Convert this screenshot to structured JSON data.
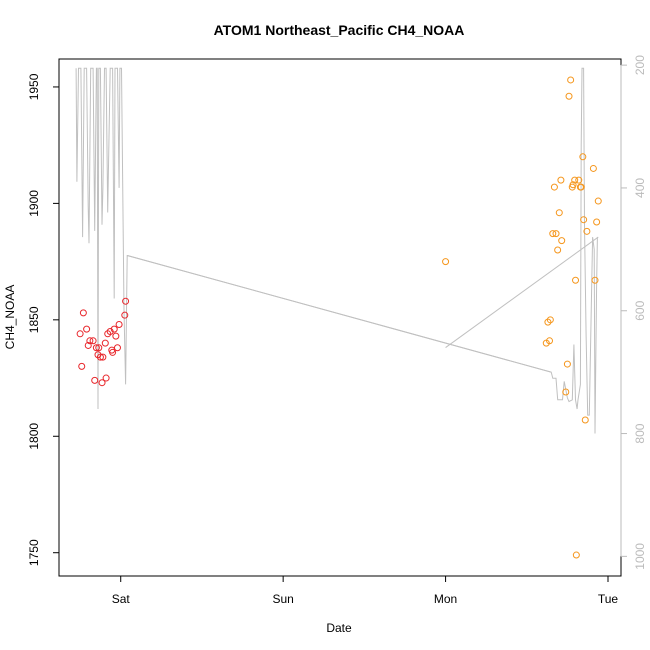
{
  "chart_data": {
    "type": "scatter",
    "title": "ATOM1 Northeast_Pacific CH4_NOAA",
    "xlabel": "Date",
    "ylabel": "CH4_NOAA",
    "x_unit": "days since Fri 00:00",
    "xlim": [
      0.62,
      4.08
    ],
    "ylim": [
      1740,
      1962
    ],
    "y2lim": [
      1032,
      190
    ],
    "x_ticks": [
      {
        "value": 1,
        "label": "Sat"
      },
      {
        "value": 2,
        "label": "Sun"
      },
      {
        "value": 3,
        "label": "Mon"
      },
      {
        "value": 4,
        "label": "Tue"
      }
    ],
    "y_ticks": [
      {
        "value": 1750,
        "label": "1750"
      },
      {
        "value": 1800,
        "label": "1800"
      },
      {
        "value": 1850,
        "label": "1850"
      },
      {
        "value": 1900,
        "label": "1900"
      },
      {
        "value": 1950,
        "label": "1950"
      }
    ],
    "y2_ticks": [
      {
        "value": 200,
        "label": "200"
      },
      {
        "value": 400,
        "label": "400"
      },
      {
        "value": 600,
        "label": "600"
      },
      {
        "value": 800,
        "label": "800"
      },
      {
        "value": 1000,
        "label": "1000"
      }
    ],
    "colors": {
      "series_1": "#e8262b",
      "series_2": "#f5961c",
      "pressure": "#c0c0c0"
    },
    "series": [
      {
        "name": "series_1",
        "points": [
          [
            0.75,
            1844
          ],
          [
            0.76,
            1830
          ],
          [
            0.77,
            1853
          ],
          [
            0.79,
            1846
          ],
          [
            0.8,
            1839
          ],
          [
            0.81,
            1841
          ],
          [
            0.83,
            1841
          ],
          [
            0.84,
            1824
          ],
          [
            0.85,
            1838
          ],
          [
            0.86,
            1835
          ],
          [
            0.865,
            1838
          ],
          [
            0.875,
            1834
          ],
          [
            0.885,
            1823
          ],
          [
            0.89,
            1834
          ],
          [
            0.905,
            1840
          ],
          [
            0.91,
            1825
          ],
          [
            0.92,
            1844
          ],
          [
            0.935,
            1845
          ],
          [
            0.945,
            1837
          ],
          [
            0.95,
            1836
          ],
          [
            0.96,
            1846
          ],
          [
            0.97,
            1843
          ],
          [
            0.98,
            1838
          ],
          [
            0.99,
            1848
          ],
          [
            1.025,
            1852
          ],
          [
            1.03,
            1858
          ]
        ]
      },
      {
        "name": "series_2",
        "points": [
          [
            3.0,
            1875
          ],
          [
            3.62,
            1840
          ],
          [
            3.63,
            1849
          ],
          [
            3.64,
            1841
          ],
          [
            3.645,
            1850
          ],
          [
            3.66,
            1887
          ],
          [
            3.67,
            1907
          ],
          [
            3.68,
            1887
          ],
          [
            3.69,
            1880
          ],
          [
            3.7,
            1896
          ],
          [
            3.71,
            1910
          ],
          [
            3.715,
            1884
          ],
          [
            3.74,
            1819
          ],
          [
            3.75,
            1831
          ],
          [
            3.76,
            1946
          ],
          [
            3.77,
            1953
          ],
          [
            3.78,
            1907
          ],
          [
            3.785,
            1908
          ],
          [
            3.795,
            1910
          ],
          [
            3.8,
            1867
          ],
          [
            3.805,
            1749
          ],
          [
            3.82,
            1910
          ],
          [
            3.83,
            1907
          ],
          [
            3.835,
            1907
          ],
          [
            3.845,
            1920
          ],
          [
            3.85,
            1893
          ],
          [
            3.86,
            1807
          ],
          [
            3.87,
            1888
          ],
          [
            3.91,
            1915
          ],
          [
            3.92,
            1867
          ],
          [
            3.93,
            1892
          ],
          [
            3.94,
            1901
          ]
        ]
      }
    ],
    "pressure_line": {
      "name": "pressure",
      "axis": "right",
      "points": [
        [
          0.725,
          205
        ],
        [
          0.73,
          390
        ],
        [
          0.74,
          205
        ],
        [
          0.755,
          205
        ],
        [
          0.765,
          480
        ],
        [
          0.775,
          205
        ],
        [
          0.79,
          205
        ],
        [
          0.8,
          430
        ],
        [
          0.805,
          490
        ],
        [
          0.815,
          205
        ],
        [
          0.83,
          205
        ],
        [
          0.84,
          470
        ],
        [
          0.85,
          205
        ],
        [
          0.855,
          205
        ],
        [
          0.86,
          760
        ],
        [
          0.865,
          205
        ],
        [
          0.875,
          205
        ],
        [
          0.885,
          460
        ],
        [
          0.89,
          400
        ],
        [
          0.9,
          205
        ],
        [
          0.91,
          205
        ],
        [
          0.92,
          440
        ],
        [
          0.935,
          205
        ],
        [
          0.95,
          205
        ],
        [
          0.96,
          580
        ],
        [
          0.965,
          205
        ],
        [
          0.98,
          205
        ],
        [
          0.99,
          400
        ],
        [
          0.995,
          205
        ],
        [
          1.005,
          205
        ],
        [
          1.02,
          600
        ],
        [
          1.03,
          720
        ],
        [
          1.04,
          510
        ],
        [
          3.65,
          700
        ],
        [
          3.66,
          710
        ],
        [
          3.68,
          710
        ],
        [
          3.69,
          745
        ],
        [
          3.72,
          745
        ],
        [
          3.73,
          715
        ],
        [
          3.75,
          742
        ],
        [
          3.76,
          748
        ],
        [
          3.78,
          745
        ],
        [
          3.79,
          655
        ],
        [
          3.8,
          745
        ],
        [
          3.81,
          760
        ],
        [
          3.815,
          745
        ],
        [
          3.83,
          720
        ],
        [
          3.835,
          330
        ],
        [
          3.84,
          205
        ],
        [
          3.85,
          205
        ],
        [
          3.855,
          460
        ],
        [
          3.865,
          640
        ],
        [
          3.875,
          770
        ],
        [
          3.885,
          770
        ],
        [
          3.895,
          620
        ],
        [
          3.905,
          480
        ],
        [
          3.915,
          500
        ],
        [
          3.92,
          800
        ],
        [
          3.93,
          560
        ],
        [
          3.935,
          480
        ]
      ],
      "segments": [
        [
          [
            1.04,
            510
          ],
          [
            3.65,
            700
          ]
        ],
        [
          [
            3.0,
            660
          ],
          [
            3.94,
            480
          ]
        ]
      ]
    }
  }
}
